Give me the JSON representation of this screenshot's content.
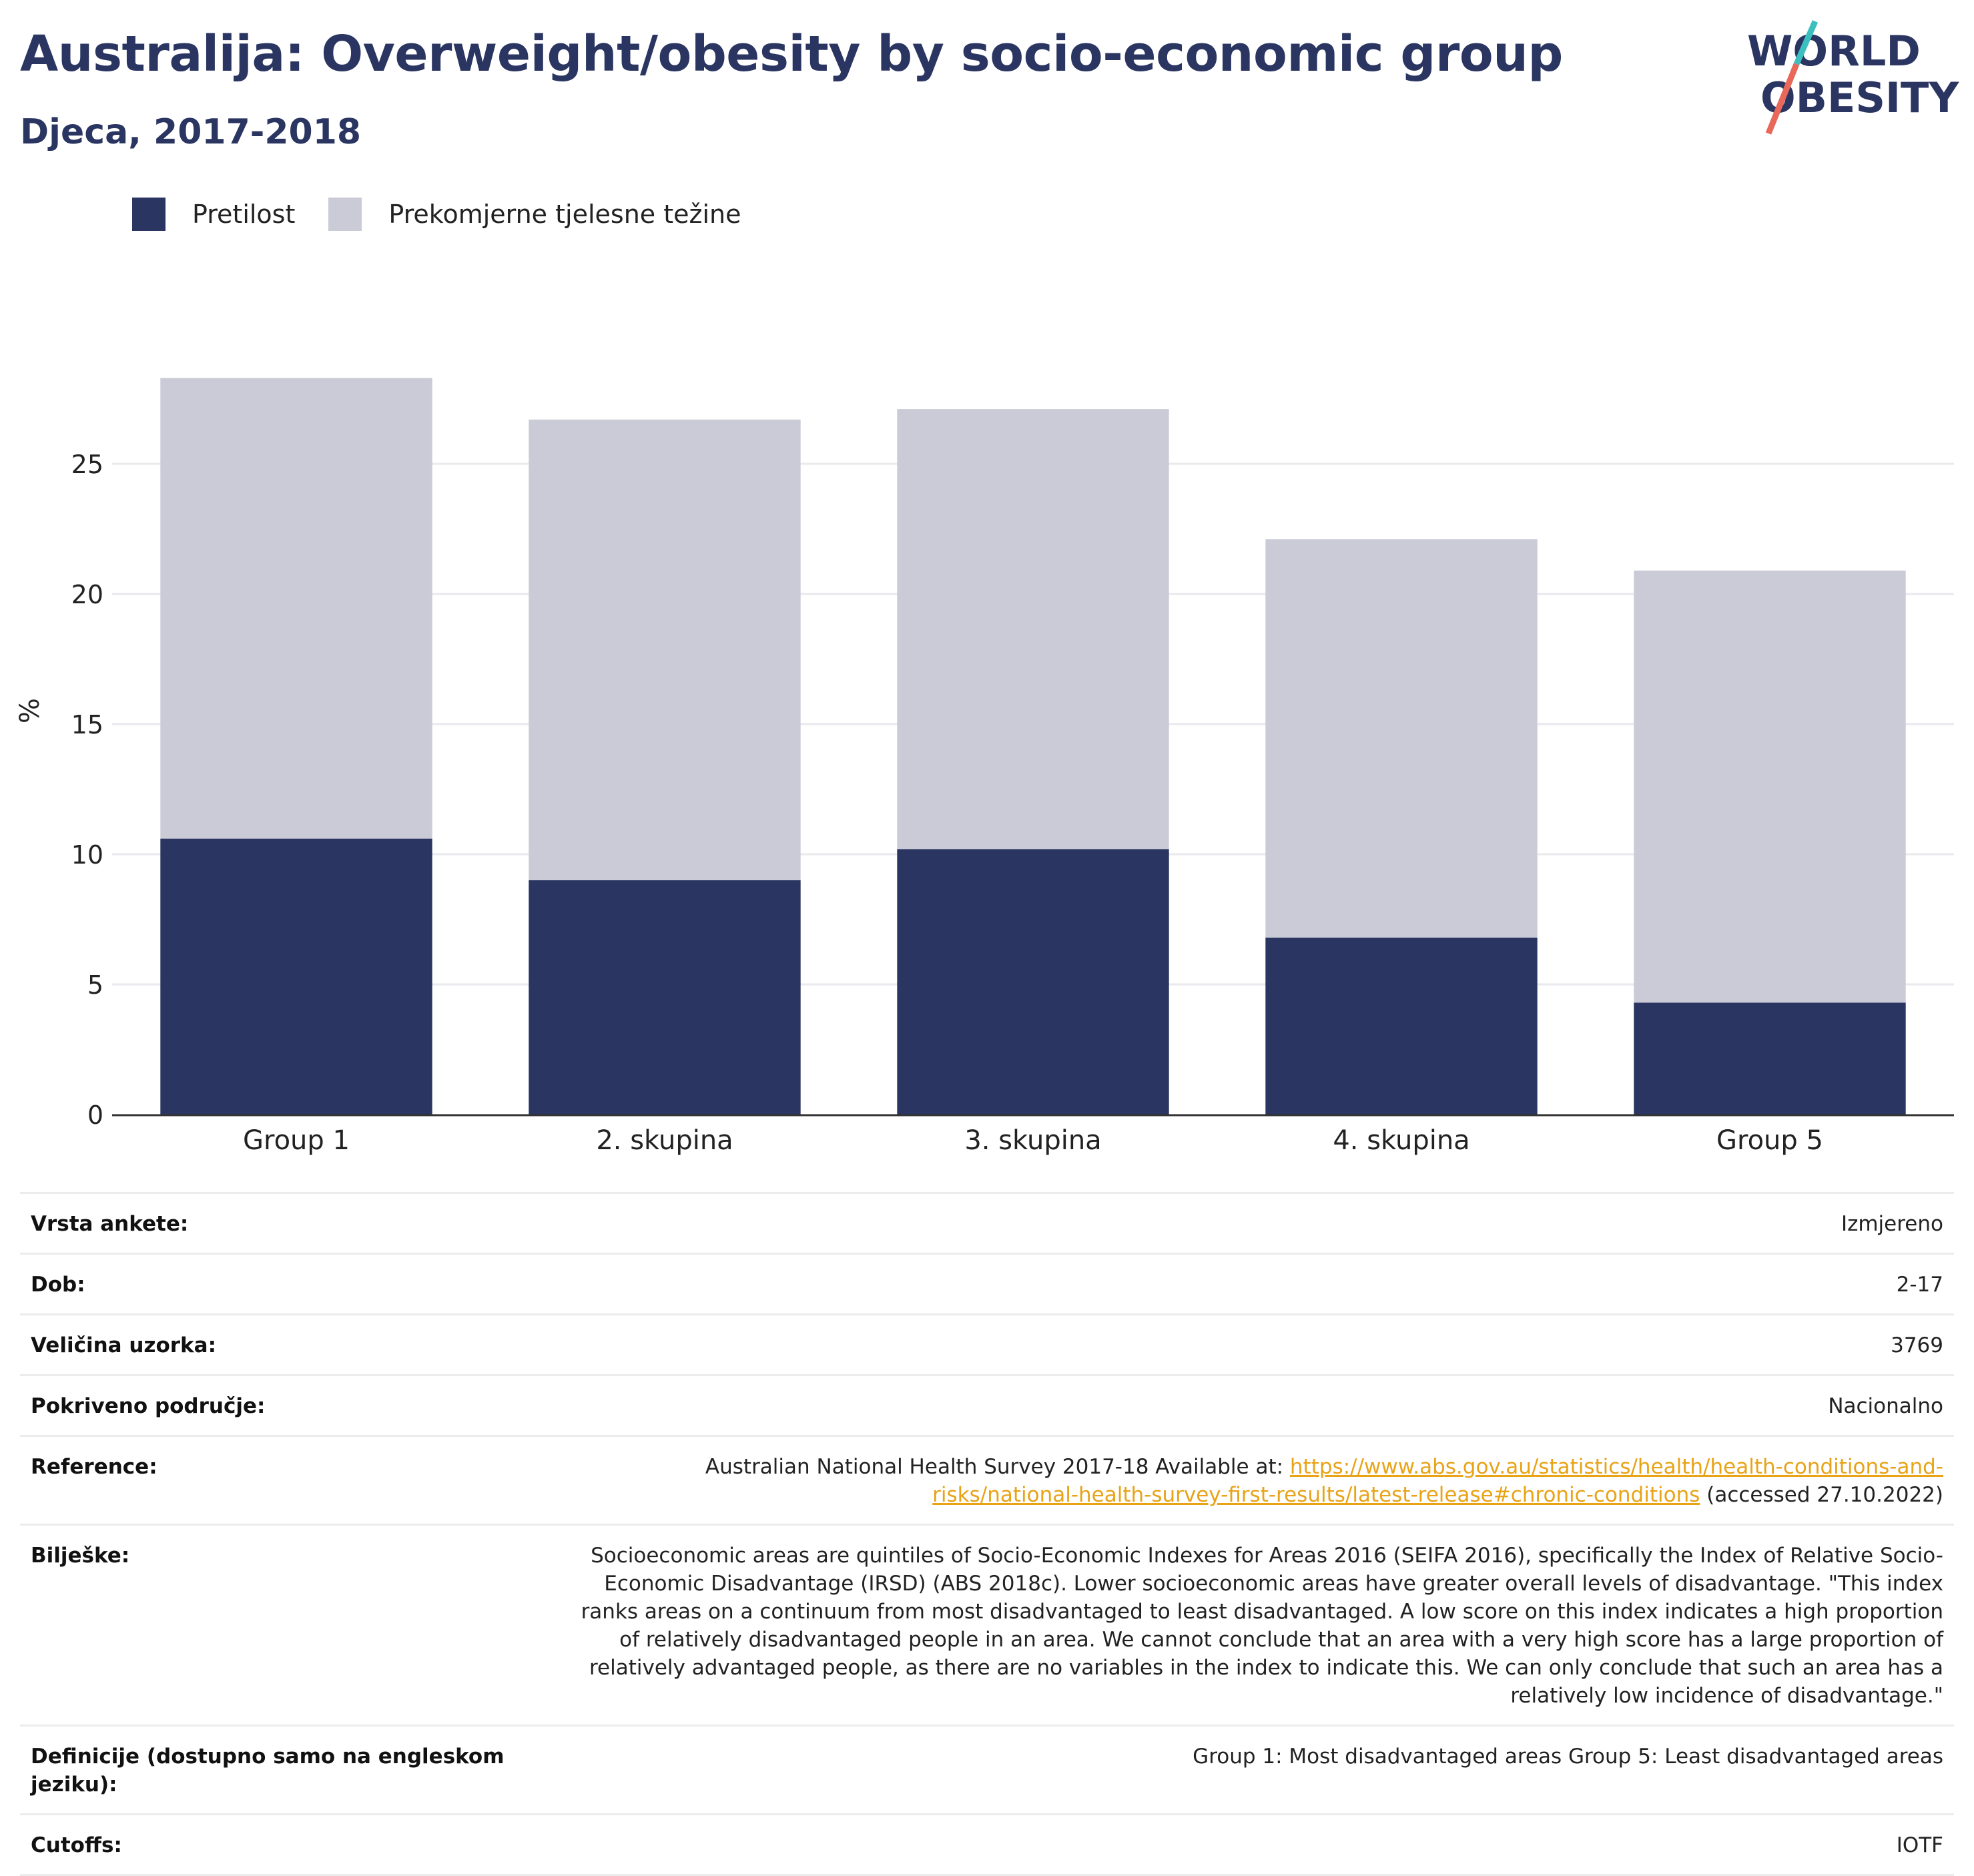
{
  "header": {
    "title": "Australija: Overweight/obesity by socio-economic group",
    "subtitle": "Djeca, 2017-2018"
  },
  "logo": {
    "line1": "WORLD",
    "line2": "OBESITY",
    "colors": {
      "text": "#2a3561",
      "slash_teal": "#3bbfbf",
      "slash_coral": "#e8685a"
    }
  },
  "legend": [
    {
      "label": "Pretilost",
      "color": "#2a3561"
    },
    {
      "label": "Prekomjerne tjelesne težine",
      "color": "#cacbd6"
    }
  ],
  "chart_data": {
    "type": "bar",
    "stacked": true,
    "categories": [
      "Group 1",
      "2. skupina",
      "3. skupina",
      "4. skupina",
      "Group 5"
    ],
    "series": [
      {
        "name": "Pretilost",
        "color": "#2a3561",
        "values": [
          10.6,
          9.0,
          10.2,
          6.8,
          4.3
        ]
      },
      {
        "name": "Prekomjerne tjelesne težine",
        "color": "#cacbd6",
        "values": [
          17.7,
          17.7,
          16.9,
          15.3,
          16.6
        ]
      }
    ],
    "ylabel": "%",
    "ylim": [
      0,
      30
    ],
    "yticks": [
      0,
      5,
      10,
      15,
      20,
      25
    ],
    "grid": true,
    "legend_position": "top-left"
  },
  "meta": [
    {
      "label": "Vrsta ankete:",
      "value": "Izmjereno"
    },
    {
      "label": "Dob:",
      "value": "2-17"
    },
    {
      "label": "Veličina uzorka:",
      "value": "3769"
    },
    {
      "label": "Pokriveno područje:",
      "value": "Nacionalno"
    },
    {
      "label": "Reference:",
      "prefix": "Australian National Health Survey 2017-18 Available at: ",
      "link": "https://www.abs.gov.au/statistics/health/health-conditions-and-risks/national-health-survey-first-results/latest-release#chronic-conditions",
      "suffix": " (accessed 27.10.2022)"
    },
    {
      "label": "Bilješke:",
      "value": "Socioeconomic areas are quintiles of Socio-Economic Indexes for Areas 2016 (SEIFA 2016), specifically the Index of Relative Socio-Economic Disadvantage (IRSD) (ABS 2018c). Lower socioeconomic areas have greater overall levels of disadvantage. \"This index ranks areas on a continuum from most disadvantaged to least disadvantaged. A low score on this index indicates a high proportion of relatively disadvantaged people in an area. We cannot conclude that an area with a very high score has a large proportion of relatively advantaged people, as there are no variables in the index to indicate this. We can only conclude that such an area has a relatively low incidence of disadvantage.\""
    },
    {
      "label": "Definicije (dostupno samo na engleskom jeziku):",
      "value": "Group 1: Most disadvantaged areas Group 5: Least disadvantaged areas"
    },
    {
      "label": "Cutoffs:",
      "value": "IOTF"
    }
  ]
}
